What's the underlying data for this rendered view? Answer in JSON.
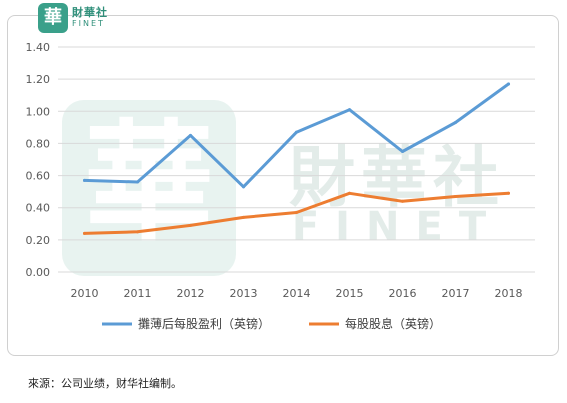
{
  "logo": {
    "mark_text": "華",
    "brand_cn": "財華社",
    "brand_en": "FINET"
  },
  "watermark": {
    "mark_text": "華",
    "text_cn": "財華社",
    "text_en": "FINET"
  },
  "caption": "來源：公司业绩，财华社编制。",
  "colors": {
    "series1": "#5b9bd5",
    "series2": "#ed7d31",
    "grid": "#d9d9d9",
    "watermark": "#e1f0ec"
  },
  "chart_data": {
    "type": "line",
    "x": [
      "2010",
      "2011",
      "2012",
      "2013",
      "2014",
      "2015",
      "2016",
      "2017",
      "2018"
    ],
    "ylim": [
      0,
      1.4
    ],
    "yticks": [
      "0.00",
      "0.20",
      "0.40",
      "0.60",
      "0.80",
      "1.00",
      "1.20",
      "1.40"
    ],
    "grid": true,
    "legend_position": "bottom",
    "series": [
      {
        "name": "攤薄后每股盈利（英镑）",
        "values": [
          0.57,
          0.56,
          0.85,
          0.53,
          0.87,
          1.01,
          0.75,
          0.93,
          1.17
        ]
      },
      {
        "name": "每股股息（英镑）",
        "values": [
          0.24,
          0.25,
          0.29,
          0.34,
          0.37,
          0.49,
          0.44,
          0.47,
          0.49
        ]
      }
    ]
  }
}
